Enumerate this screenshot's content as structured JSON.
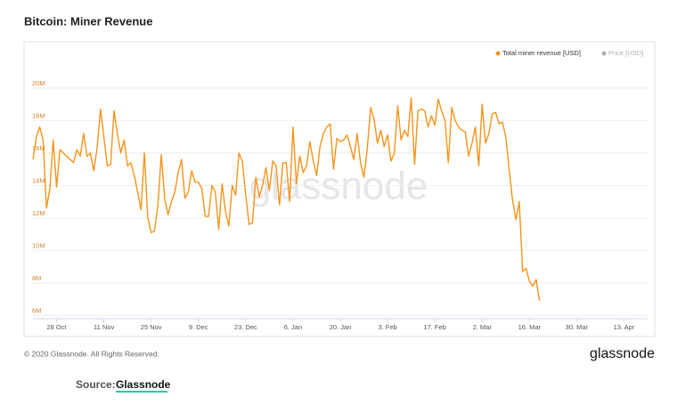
{
  "chart_data": {
    "type": "line",
    "title": "Bitcoin: Miner Revenue",
    "watermark": "glassnode",
    "footer": "© 2020 Glassnode. All Rights Reserved.",
    "brand": "glassnode",
    "source_label": "Source:",
    "source_name": "Glassnode",
    "categories": [
      null,
      null,
      null,
      null,
      null,
      null,
      null,
      "28 Oct",
      null,
      null,
      null,
      null,
      null,
      null,
      null,
      null,
      null,
      null,
      null,
      null,
      null,
      "11 Nov",
      null,
      null,
      null,
      null,
      null,
      null,
      null,
      null,
      null,
      null,
      null,
      null,
      null,
      "25 Nov",
      null,
      null,
      null,
      null,
      null,
      null,
      null,
      null,
      null,
      null,
      null,
      null,
      null,
      "9. Dec",
      null,
      null,
      null,
      null,
      null,
      null,
      null,
      null,
      null,
      null,
      null,
      null,
      null,
      "23. Dec",
      null,
      null,
      null,
      null,
      null,
      null,
      null,
      null,
      null,
      null,
      null,
      null,
      null,
      "6. Jan",
      null,
      null,
      null,
      null,
      null,
      null,
      null,
      null,
      null,
      null,
      null,
      null,
      null,
      "20. Jan",
      null,
      null,
      null,
      null,
      null,
      null,
      null,
      null,
      null,
      null,
      null,
      null,
      null,
      "3. Feb",
      null,
      null,
      null,
      null,
      null,
      null,
      null,
      null,
      null,
      null,
      null,
      null,
      null,
      "17. Feb",
      null,
      null,
      null,
      null,
      null,
      null,
      null,
      null,
      null,
      null,
      null,
      null,
      null,
      "2. Mar",
      null,
      null,
      null,
      null,
      null,
      null,
      null,
      null,
      null,
      null,
      null,
      null,
      null,
      "16. Mar",
      null,
      null,
      null,
      null,
      null,
      null,
      null,
      null,
      null,
      null,
      null,
      null,
      null,
      "30. Mar",
      null,
      null,
      null,
      null,
      null,
      null,
      null,
      null,
      null,
      null,
      null,
      null,
      null,
      "13. Apr",
      null,
      null,
      null,
      null,
      null,
      null,
      null
    ],
    "series": [
      {
        "name": "Total miner revenue [USD]",
        "color": "#f7931a",
        "values": [
          15600000,
          17000000,
          17600000,
          16800000,
          12600000,
          13800000,
          16800000,
          13900000,
          16200000,
          16000000,
          15800000,
          15600000,
          15400000,
          16200000,
          15800000,
          17200000,
          15800000,
          16000000,
          14900000,
          16300000,
          18700000,
          17000000,
          15200000,
          15300000,
          18600000,
          17200000,
          16000000,
          16800000,
          15200000,
          15400000,
          14600000,
          13600000,
          12500000,
          16000000,
          12000000,
          11100000,
          11200000,
          12800000,
          15900000,
          13200000,
          12200000,
          13000000,
          13600000,
          14800000,
          15600000,
          13200000,
          13600000,
          14900000,
          14200000,
          14200000,
          13800000,
          12100000,
          12100000,
          14000000,
          13600000,
          11300000,
          14100000,
          12400000,
          11500000,
          14000000,
          13400000,
          16000000,
          15500000,
          13400000,
          11600000,
          11700000,
          14500000,
          13300000,
          14000000,
          15100000,
          13700000,
          15500000,
          15200000,
          12800000,
          15400000,
          15400000,
          13000000,
          17600000,
          14100000,
          15800000,
          14800000,
          15200000,
          16700000,
          15500000,
          14600000,
          16400000,
          17200000,
          17600000,
          17800000,
          15000000,
          16900000,
          16700000,
          16800000,
          17100000,
          16400000,
          15600000,
          17200000,
          15400000,
          14500000,
          16300000,
          18800000,
          18100000,
          16600000,
          17400000,
          16400000,
          17100000,
          15500000,
          16000000,
          18900000,
          16800000,
          17400000,
          17000000,
          19400000,
          15300000,
          18600000,
          18700000,
          18600000,
          17600000,
          18300000,
          17700000,
          19300000,
          18600000,
          18000000,
          15400000,
          18800000,
          18000000,
          17600000,
          17400000,
          17300000,
          15800000,
          16600000,
          17600000,
          15200000,
          19000000,
          16600000,
          17200000,
          18400000,
          18500000,
          17800000,
          17900000,
          17000000,
          15000000,
          13100000,
          11900000,
          13000000,
          8700000,
          8900000,
          8100000,
          7800000,
          8200000,
          6900000,
          null,
          null,
          null,
          null,
          null,
          null,
          null,
          null,
          null,
          null,
          null,
          null,
          null,
          null,
          null,
          null,
          null,
          null,
          null,
          null,
          null,
          null,
          null,
          null,
          null,
          null,
          null,
          null,
          null,
          null,
          null,
          null
        ]
      }
    ],
    "legend_inactive": {
      "name": "Price [USD]",
      "color": "#b0b0b0"
    },
    "ylim": [
      5800000,
      21800000
    ],
    "yticks": [
      {
        "value": 6000000,
        "label": "6M"
      },
      {
        "value": 8000000,
        "label": "8M"
      },
      {
        "value": 10000000,
        "label": "10M"
      },
      {
        "value": 12000000,
        "label": "12M"
      },
      {
        "value": 14000000,
        "label": "14M"
      },
      {
        "value": 16000000,
        "label": "16M"
      },
      {
        "value": 18000000,
        "label": "18M"
      },
      {
        "value": 20000000,
        "label": "20M"
      }
    ],
    "grid": true
  }
}
